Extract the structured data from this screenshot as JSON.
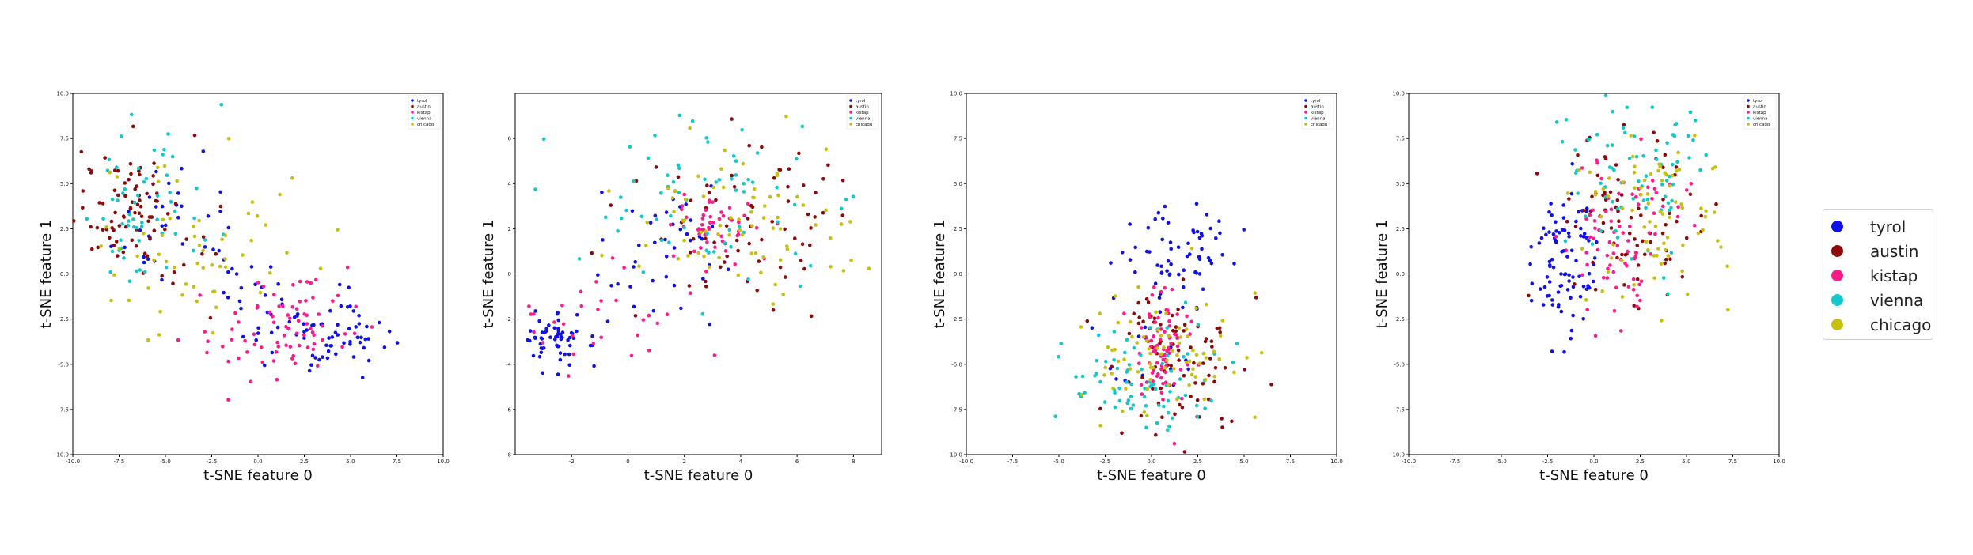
{
  "legend": {
    "entries": [
      {
        "label": "tyrol",
        "color": "#1010e8"
      },
      {
        "label": "austin",
        "color": "#8b0a0a"
      },
      {
        "label": "kistap",
        "color": "#ff1a8c"
      },
      {
        "label": "vienna",
        "color": "#12c8c8"
      },
      {
        "label": "chicago",
        "color": "#c8c010"
      }
    ]
  },
  "chart_data": [
    {
      "type": "scatter",
      "xlabel": "t-SNE feature 0",
      "ylabel": "t-SNE feature 1",
      "xlim": [
        -10,
        10
      ],
      "ylim": [
        -10,
        10
      ],
      "xticks": [
        "-10.0",
        "-7.5",
        "-5.0",
        "-2.5",
        "0.0",
        "2.5",
        "5.0",
        "7.5",
        "10.0"
      ],
      "yticks": [
        "-10.0",
        "-7.5",
        "-5.0",
        "-2.5",
        "0.0",
        "2.5",
        "5.0",
        "7.5",
        "10.0"
      ],
      "legend_position": "top-right",
      "clusters": [
        {
          "series": "tyrol",
          "n": 70,
          "x": 3.5,
          "y": -3.2,
          "sx": 1.9,
          "sy": 1.1,
          "rot": 0.1
        },
        {
          "series": "tyrol",
          "n": 30,
          "x": -5.5,
          "y": 2.5,
          "sx": 1.5,
          "sy": 1.6,
          "rot": 0
        },
        {
          "series": "tyrol",
          "n": 18,
          "x": -1.0,
          "y": -0.5,
          "sx": 1.2,
          "sy": 1.0,
          "rot": 0
        },
        {
          "series": "austin",
          "n": 80,
          "x": -7.2,
          "y": 3.8,
          "sx": 1.4,
          "sy": 1.6,
          "rot": 0
        },
        {
          "series": "austin",
          "n": 10,
          "x": -3.5,
          "y": 0.5,
          "sx": 1.5,
          "sy": 1.5,
          "rot": 0
        },
        {
          "series": "kistap",
          "n": 80,
          "x": 1.5,
          "y": -3.0,
          "sx": 2.2,
          "sy": 1.4,
          "rot": 0.2
        },
        {
          "series": "vienna",
          "n": 60,
          "x": -6.0,
          "y": 4.2,
          "sx": 2.0,
          "sy": 2.2,
          "rot": 0
        },
        {
          "series": "chicago",
          "n": 60,
          "x": -4.0,
          "y": 1.5,
          "sx": 3.0,
          "sy": 2.5,
          "rot": -0.3
        }
      ]
    },
    {
      "type": "scatter",
      "xlabel": "t-SNE feature 0",
      "ylabel": "t-SNE feature 1",
      "xlim": [
        -4,
        9
      ],
      "ylim": [
        -8,
        8
      ],
      "xticks": [
        "-2",
        "0",
        "2",
        "4",
        "6",
        "8"
      ],
      "yticks": [
        "-8",
        "-6",
        "-4",
        "-2",
        "0",
        "2",
        "4",
        "6"
      ],
      "legend_position": "top-right",
      "clusters": [
        {
          "series": "tyrol",
          "n": 60,
          "x": -2.7,
          "y": -3.0,
          "sx": 0.6,
          "sy": 0.6,
          "rot": 0
        },
        {
          "series": "tyrol",
          "n": 40,
          "x": 1.2,
          "y": 1.0,
          "sx": 1.3,
          "sy": 1.4,
          "rot": 0
        },
        {
          "series": "austin",
          "n": 70,
          "x": 4.5,
          "y": 2.5,
          "sx": 2.2,
          "sy": 2.0,
          "rot": 0
        },
        {
          "series": "kistap",
          "n": 50,
          "x": 3.0,
          "y": 2.0,
          "sx": 0.8,
          "sy": 0.8,
          "rot": 0
        },
        {
          "series": "kistap",
          "n": 30,
          "x": -0.5,
          "y": -1.5,
          "sx": 1.5,
          "sy": 1.5,
          "rot": 0
        },
        {
          "series": "vienna",
          "n": 70,
          "x": 3.0,
          "y": 3.5,
          "sx": 2.3,
          "sy": 2.2,
          "rot": 0
        },
        {
          "series": "chicago",
          "n": 80,
          "x": 4.5,
          "y": 2.0,
          "sx": 2.5,
          "sy": 2.0,
          "rot": 0
        }
      ]
    },
    {
      "type": "scatter",
      "xlabel": "t-SNE feature 0",
      "ylabel": "t-SNE feature 1",
      "xlim": [
        -10,
        10
      ],
      "ylim": [
        -10,
        10
      ],
      "xticks": [
        "-10.0",
        "-7.5",
        "-5.0",
        "-2.5",
        "0.0",
        "2.5",
        "5.0",
        "7.5",
        "10.0"
      ],
      "yticks": [
        "-10.0",
        "-7.5",
        "-5.0",
        "-2.5",
        "0.0",
        "2.5",
        "5.0",
        "7.5",
        "10.0"
      ],
      "legend_position": "top-right",
      "clusters": [
        {
          "series": "tyrol",
          "n": 60,
          "x": 1.5,
          "y": 1.5,
          "sx": 1.3,
          "sy": 1.2,
          "rot": 0
        },
        {
          "series": "tyrol",
          "n": 20,
          "x": -0.5,
          "y": -4.0,
          "sx": 2.0,
          "sy": 2.0,
          "rot": 0
        },
        {
          "series": "austin",
          "n": 80,
          "x": 1.5,
          "y": -4.5,
          "sx": 2.0,
          "sy": 2.0,
          "rot": 0
        },
        {
          "series": "kistap",
          "n": 80,
          "x": 0.5,
          "y": -4.0,
          "sx": 0.8,
          "sy": 1.6,
          "rot": 0
        },
        {
          "series": "vienna",
          "n": 80,
          "x": -0.5,
          "y": -6.0,
          "sx": 2.0,
          "sy": 1.5,
          "rot": 0
        },
        {
          "series": "chicago",
          "n": 80,
          "x": 0.8,
          "y": -4.5,
          "sx": 2.2,
          "sy": 2.0,
          "rot": 0
        }
      ]
    },
    {
      "type": "scatter",
      "xlabel": "t-SNE feature 0",
      "ylabel": "t-SNE feature 1",
      "xlim": [
        -10,
        10
      ],
      "ylim": [
        -10,
        10
      ],
      "xticks": [
        "-10.0",
        "-7.5",
        "-5.0",
        "-2.5",
        "0.0",
        "2.5",
        "5.0",
        "7.5",
        "10.0"
      ],
      "yticks": [
        "-10.0",
        "-7.5",
        "-5.0",
        "-2.5",
        "0.0",
        "2.5",
        "5.0",
        "7.5",
        "10.0"
      ],
      "legend_position": "top-right",
      "clusters": [
        {
          "series": "tyrol",
          "n": 90,
          "x": -1.5,
          "y": 1.0,
          "sx": 1.0,
          "sy": 2.0,
          "rot": 0
        },
        {
          "series": "austin",
          "n": 80,
          "x": 2.2,
          "y": 3.5,
          "sx": 1.8,
          "sy": 2.5,
          "rot": 0
        },
        {
          "series": "kistap",
          "n": 80,
          "x": 1.5,
          "y": 2.0,
          "sx": 1.5,
          "sy": 2.5,
          "rot": 0
        },
        {
          "series": "vienna",
          "n": 80,
          "x": 2.5,
          "y": 5.5,
          "sx": 1.8,
          "sy": 2.5,
          "rot": 0
        },
        {
          "series": "chicago",
          "n": 80,
          "x": 3.0,
          "y": 3.5,
          "sx": 2.3,
          "sy": 2.8,
          "rot": 0
        }
      ]
    }
  ]
}
